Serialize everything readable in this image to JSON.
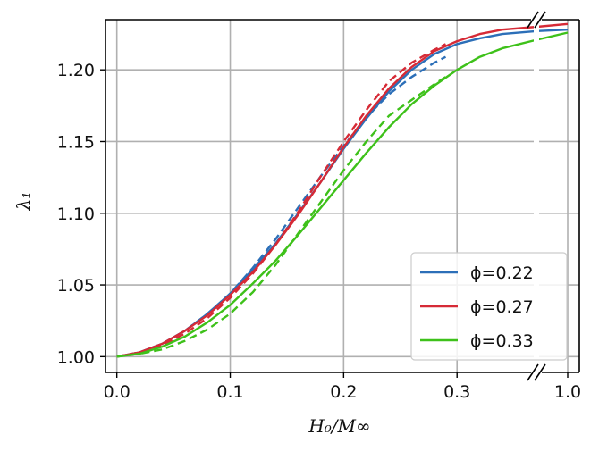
{
  "chart_data": {
    "type": "line",
    "xlabel": "H₀/M∞",
    "ylabel": "λ₁",
    "xlim": [
      -0.01,
      1.01
    ],
    "x_axis_break": "between 0.3 and 1.0",
    "ylim": [
      0.989,
      1.235
    ],
    "x_ticks": [
      "0.0",
      "0.1",
      "0.2",
      "0.3",
      "1.0"
    ],
    "y_ticks": [
      "1.00",
      "1.05",
      "1.10",
      "1.15",
      "1.20"
    ],
    "grid": true,
    "legend_position": "lower-right",
    "legend": [
      {
        "label": "ϕ=0.22",
        "color": "#2c6fb8"
      },
      {
        "label": "ϕ=0.27",
        "color": "#d62a36"
      },
      {
        "label": "ϕ=0.33",
        "color": "#3ec11a"
      }
    ],
    "series": [
      {
        "name": "ϕ=0.22",
        "color": "#2c6fb8",
        "style": "solid",
        "x": [
          0,
          0.02,
          0.04,
          0.06,
          0.08,
          0.1,
          0.12,
          0.14,
          0.16,
          0.18,
          0.2,
          0.22,
          0.24,
          0.26,
          0.28,
          0.3,
          0.32,
          0.34,
          0.38,
          1.0
        ],
        "y": [
          1.0,
          1.003,
          1.009,
          1.018,
          1.03,
          1.044,
          1.061,
          1.079,
          1.1,
          1.122,
          1.145,
          1.166,
          1.185,
          1.2,
          1.211,
          1.218,
          1.222,
          1.225,
          1.227,
          1.228
        ]
      },
      {
        "name": "ϕ=0.22",
        "color": "#2c6fb8",
        "style": "dashed",
        "x": [
          0,
          0.02,
          0.04,
          0.06,
          0.08,
          0.1,
          0.12,
          0.14,
          0.16,
          0.18,
          0.2,
          0.22,
          0.24,
          0.26,
          0.28,
          0.29
        ],
        "y": [
          1.0,
          1.003,
          1.009,
          1.018,
          1.03,
          1.044,
          1.062,
          1.082,
          1.104,
          1.126,
          1.147,
          1.167,
          1.183,
          1.195,
          1.205,
          1.209
        ]
      },
      {
        "name": "ϕ=0.27",
        "color": "#d62a36",
        "style": "solid",
        "x": [
          0,
          0.02,
          0.04,
          0.06,
          0.08,
          0.1,
          0.12,
          0.14,
          0.16,
          0.18,
          0.2,
          0.22,
          0.24,
          0.26,
          0.28,
          0.3,
          0.32,
          0.34,
          0.38,
          1.0
        ],
        "y": [
          1.0,
          1.003,
          1.009,
          1.018,
          1.029,
          1.043,
          1.059,
          1.078,
          1.099,
          1.122,
          1.146,
          1.168,
          1.187,
          1.202,
          1.213,
          1.22,
          1.225,
          1.228,
          1.23,
          1.232
        ]
      },
      {
        "name": "ϕ=0.27",
        "color": "#d62a36",
        "style": "dashed",
        "x": [
          0,
          0.02,
          0.04,
          0.06,
          0.08,
          0.1,
          0.12,
          0.14,
          0.16,
          0.18,
          0.2,
          0.22,
          0.24,
          0.26,
          0.28,
          0.29
        ],
        "y": [
          1.0,
          1.003,
          1.008,
          1.016,
          1.027,
          1.041,
          1.058,
          1.078,
          1.101,
          1.126,
          1.15,
          1.172,
          1.192,
          1.205,
          1.214,
          1.218
        ]
      },
      {
        "name": "ϕ=0.33",
        "color": "#3ec11a",
        "style": "solid",
        "x": [
          0,
          0.02,
          0.04,
          0.06,
          0.08,
          0.1,
          0.12,
          0.14,
          0.16,
          0.18,
          0.2,
          0.22,
          0.24,
          0.26,
          0.28,
          0.3,
          0.32,
          0.34,
          0.38,
          1.0
        ],
        "y": [
          1.0,
          1.002,
          1.007,
          1.014,
          1.024,
          1.036,
          1.051,
          1.067,
          1.085,
          1.104,
          1.123,
          1.142,
          1.16,
          1.176,
          1.189,
          1.2,
          1.209,
          1.215,
          1.221,
          1.226
        ]
      },
      {
        "name": "ϕ=0.33",
        "color": "#3ec11a",
        "style": "dashed",
        "x": [
          0,
          0.02,
          0.04,
          0.06,
          0.08,
          0.1,
          0.12,
          0.14,
          0.16,
          0.18,
          0.2,
          0.22,
          0.24,
          0.26,
          0.28,
          0.29
        ],
        "y": [
          1.0,
          1.002,
          1.005,
          1.011,
          1.019,
          1.03,
          1.045,
          1.064,
          1.086,
          1.108,
          1.13,
          1.15,
          1.168,
          1.179,
          1.19,
          1.195
        ]
      }
    ]
  }
}
